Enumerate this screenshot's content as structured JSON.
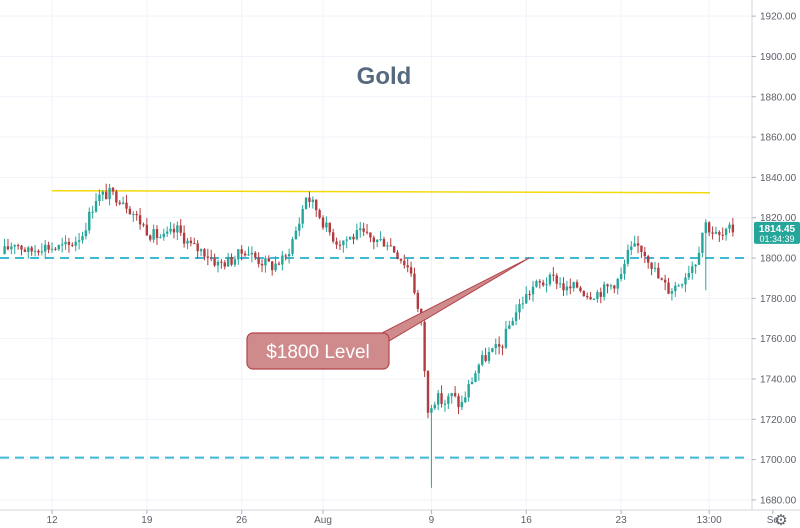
{
  "chart_data": {
    "type": "candlestick",
    "title": "Gold",
    "xlabel": "",
    "ylabel": "",
    "ylim": [
      1675,
      1928
    ],
    "y_ticks": [
      1680,
      1700,
      1720,
      1740,
      1760,
      1780,
      1800,
      1820,
      1840,
      1860,
      1880,
      1900,
      1920
    ],
    "y_tick_labels": [
      "1680.00",
      "1700.00",
      "1720.00",
      "1740.00",
      "1760.00",
      "1780.00",
      "1800.00",
      "1820.00",
      "1840.00",
      "1860.00",
      "1880.00",
      "1900.00",
      "1920.00"
    ],
    "x_tick_labels": [
      "12",
      "19",
      "26",
      "Aug",
      "9",
      "16",
      "23",
      "13:00",
      "Se"
    ],
    "x_tick_positions_days": [
      0,
      7,
      14,
      20,
      28,
      35,
      42,
      48.5,
      53.2
    ],
    "grid": true,
    "last_price": "1814.45",
    "countdown": "01:34:39",
    "annotation": {
      "text": "$1800 Level",
      "target_value": 1800
    },
    "levels": [
      {
        "name": "resistance",
        "value": 1833,
        "style": "solid",
        "color": "#f5d90a"
      },
      {
        "name": "support-1800",
        "value": 1800,
        "style": "dashed",
        "color": "#3fb9d6"
      },
      {
        "name": "support-1700",
        "value": 1701,
        "style": "dashed",
        "color": "#3fb9d6"
      }
    ],
    "waypoints_days": [
      [
        -3.5,
        1802
      ],
      [
        -2.5,
        1808
      ],
      [
        -1.5,
        1803
      ],
      [
        -0.5,
        1806
      ],
      [
        0.5,
        1805
      ],
      [
        1.5,
        1806
      ],
      [
        2.5,
        1812
      ],
      [
        3.5,
        1830
      ],
      [
        4.5,
        1832
      ],
      [
        5.5,
        1829
      ],
      [
        6.5,
        1820
      ],
      [
        7.5,
        1812
      ],
      [
        8.5,
        1810
      ],
      [
        9.5,
        1814
      ],
      [
        10.5,
        1806
      ],
      [
        11.5,
        1803
      ],
      [
        12.5,
        1797
      ],
      [
        13.5,
        1799
      ],
      [
        14.5,
        1804
      ],
      [
        15.5,
        1799
      ],
      [
        16.5,
        1796
      ],
      [
        17.5,
        1800
      ],
      [
        18.5,
        1818
      ],
      [
        19,
        1831
      ],
      [
        19.7,
        1825
      ],
      [
        20.5,
        1815
      ],
      [
        21.3,
        1808
      ],
      [
        22.2,
        1810
      ],
      [
        23,
        1812
      ],
      [
        24,
        1809
      ],
      [
        25,
        1808
      ],
      [
        26,
        1800
      ],
      [
        26.8,
        1793
      ],
      [
        27.2,
        1776
      ],
      [
        27.7,
        1760
      ],
      [
        28.1,
        1727
      ],
      [
        28.6,
        1731
      ],
      [
        29.2,
        1728
      ],
      [
        29.8,
        1732
      ],
      [
        30.4,
        1726
      ],
      [
        31,
        1736
      ],
      [
        31.8,
        1748
      ],
      [
        32.6,
        1753
      ],
      [
        33.4,
        1756
      ],
      [
        34.2,
        1770
      ],
      [
        35,
        1779
      ],
      [
        35.8,
        1786
      ],
      [
        36.6,
        1788
      ],
      [
        37.4,
        1790
      ],
      [
        38.2,
        1784
      ],
      [
        39,
        1786
      ],
      [
        39.8,
        1782
      ],
      [
        40.6,
        1783
      ],
      [
        41.4,
        1786
      ],
      [
        42.2,
        1790
      ],
      [
        42.8,
        1803
      ],
      [
        43.6,
        1806
      ],
      [
        44.3,
        1800
      ],
      [
        45,
        1790
      ],
      [
        45.8,
        1784
      ],
      [
        46.6,
        1788
      ],
      [
        47.4,
        1796
      ],
      [
        47.8,
        1799
      ],
      [
        48.4,
        1818
      ],
      [
        49.1,
        1812
      ],
      [
        49.6,
        1810
      ],
      [
        50.3,
        1814
      ]
    ]
  }
}
